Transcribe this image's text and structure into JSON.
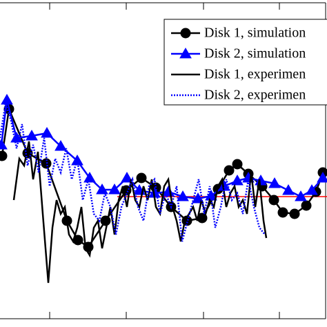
{
  "chart_data": {
    "type": "line",
    "xlim": [
      0,
      474
    ],
    "ylim": [
      0,
      474
    ],
    "xticks": [
      72,
      183,
      295,
      405
    ],
    "series": [
      {
        "name": "Disk 1, simulation",
        "color": "#000000",
        "marker": "circle",
        "line": "solid",
        "x": [
          3,
          13,
          40,
          67,
          97,
          113,
          128,
          153,
          183,
          205,
          226,
          248,
          271,
          293,
          316,
          332,
          344,
          360,
          380,
          397,
          410,
          427,
          444,
          458,
          468
        ],
        "values": [
          248,
          316,
          252,
          237,
          154,
          126,
          116,
          154,
          198,
          216,
          202,
          174,
          154,
          158,
          200,
          227,
          236,
          222,
          204,
          184,
          166,
          164,
          176,
          196,
          224
        ]
      },
      {
        "name": "Disk 2, simulation",
        "color": "#0000ff",
        "marker": "triangle",
        "line": "solid",
        "x": [
          2,
          10,
          24,
          46,
          68,
          88,
          112,
          130,
          148,
          166,
          184,
          202,
          224,
          244,
          265,
          287,
          306,
          325,
          344,
          360,
          378,
          398,
          418,
          436,
          452,
          468
        ],
        "values": [
          264,
          329,
          274,
          277,
          281,
          262,
          241,
          216,
          199,
          199,
          216,
          198,
          194,
          196,
          189,
          186,
          190,
          204,
          212,
          216,
          212,
          208,
          198,
          189,
          198,
          216
        ]
      },
      {
        "name": "Disk 1, experimen",
        "color": "#000000",
        "marker": "none",
        "line": "solid",
        "x": [
          20,
          28,
          35,
          42,
          48,
          55,
          62,
          66,
          70,
          76,
          82,
          88,
          94,
          100,
          106,
          112,
          118,
          124,
          130,
          136,
          142,
          148,
          154,
          160,
          166,
          172,
          178,
          184,
          190,
          196,
          202,
          208,
          214,
          220,
          226,
          232,
          238,
          244,
          250,
          256,
          262,
          268,
          274,
          280,
          286,
          292,
          298,
          304,
          310,
          316,
          322,
          328,
          334,
          340,
          346,
          352,
          358,
          364,
          370,
          376,
          382,
          386
        ],
        "values": [
          184,
          244,
          234,
          269,
          214,
          254,
          164,
          114,
          64,
          144,
          184,
          164,
          174,
          134,
          124,
          144,
          174,
          114,
          104,
          144,
          154,
          114,
          144,
          174,
          134,
          184,
          204,
          174,
          214,
          184,
          174,
          204,
          184,
          214,
          174,
          164,
          204,
          214,
          174,
          154,
          124,
          154,
          164,
          174,
          154,
          184,
          164,
          184,
          174,
          204,
          214,
          174,
          194,
          204,
          174,
          184,
          164,
          224,
          174,
          214,
          154,
          129
        ]
      },
      {
        "name": "Disk 2, experimen",
        "color": "#0000ff",
        "marker": "none",
        "line": "dotted",
        "x": [
          0,
          8,
          16,
          24,
          32,
          40,
          48,
          56,
          64,
          72,
          80,
          88,
          96,
          104,
          112,
          120,
          128,
          136,
          144,
          152,
          160,
          168,
          176,
          184,
          192,
          200,
          208,
          216,
          224,
          232,
          240,
          248,
          256,
          264,
          272,
          280,
          288,
          296,
          304,
          312,
          320,
          328,
          336,
          344,
          352,
          360,
          368,
          376,
          384
        ],
        "values": [
          274,
          324,
          299,
          259,
          294,
          234,
          264,
          224,
          274,
          204,
          244,
          224,
          259,
          214,
          244,
          184,
          214,
          164,
          154,
          194,
          174,
          134,
          174,
          194,
          214,
          174,
          154,
          204,
          214,
          164,
          194,
          174,
          204,
          124,
          154,
          184,
          214,
          164,
          204,
          144,
          174,
          214,
          184,
          194,
          164,
          214,
          174,
          144,
          134
        ]
      }
    ],
    "reference_line": {
      "color": "#ff0000",
      "x": [
        170,
        474
      ],
      "values": [
        189,
        189
      ]
    }
  }
}
